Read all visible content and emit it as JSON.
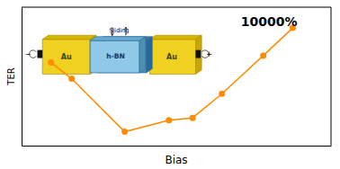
{
  "chart_data": {
    "type": "line",
    "x": [
      1.0,
      1.7,
      3.5,
      5.0,
      5.8,
      6.8,
      8.2,
      9.2
    ],
    "values": [
      7.2,
      5.8,
      1.2,
      2.2,
      2.4,
      4.5,
      7.8,
      10.2
    ],
    "color": "#ff8c00",
    "marker": "circle",
    "xlabel": "Bias",
    "ylabel": "TER",
    "xlim": [
      0,
      10.5
    ],
    "ylim": [
      0,
      12.0
    ],
    "xticks": [],
    "yticks": [],
    "tick_labels": false,
    "annotations": [
      "10000%",
      "Au",
      "Au",
      "h-BN",
      "Sliding",
      "−",
      "+"
    ]
  }
}
